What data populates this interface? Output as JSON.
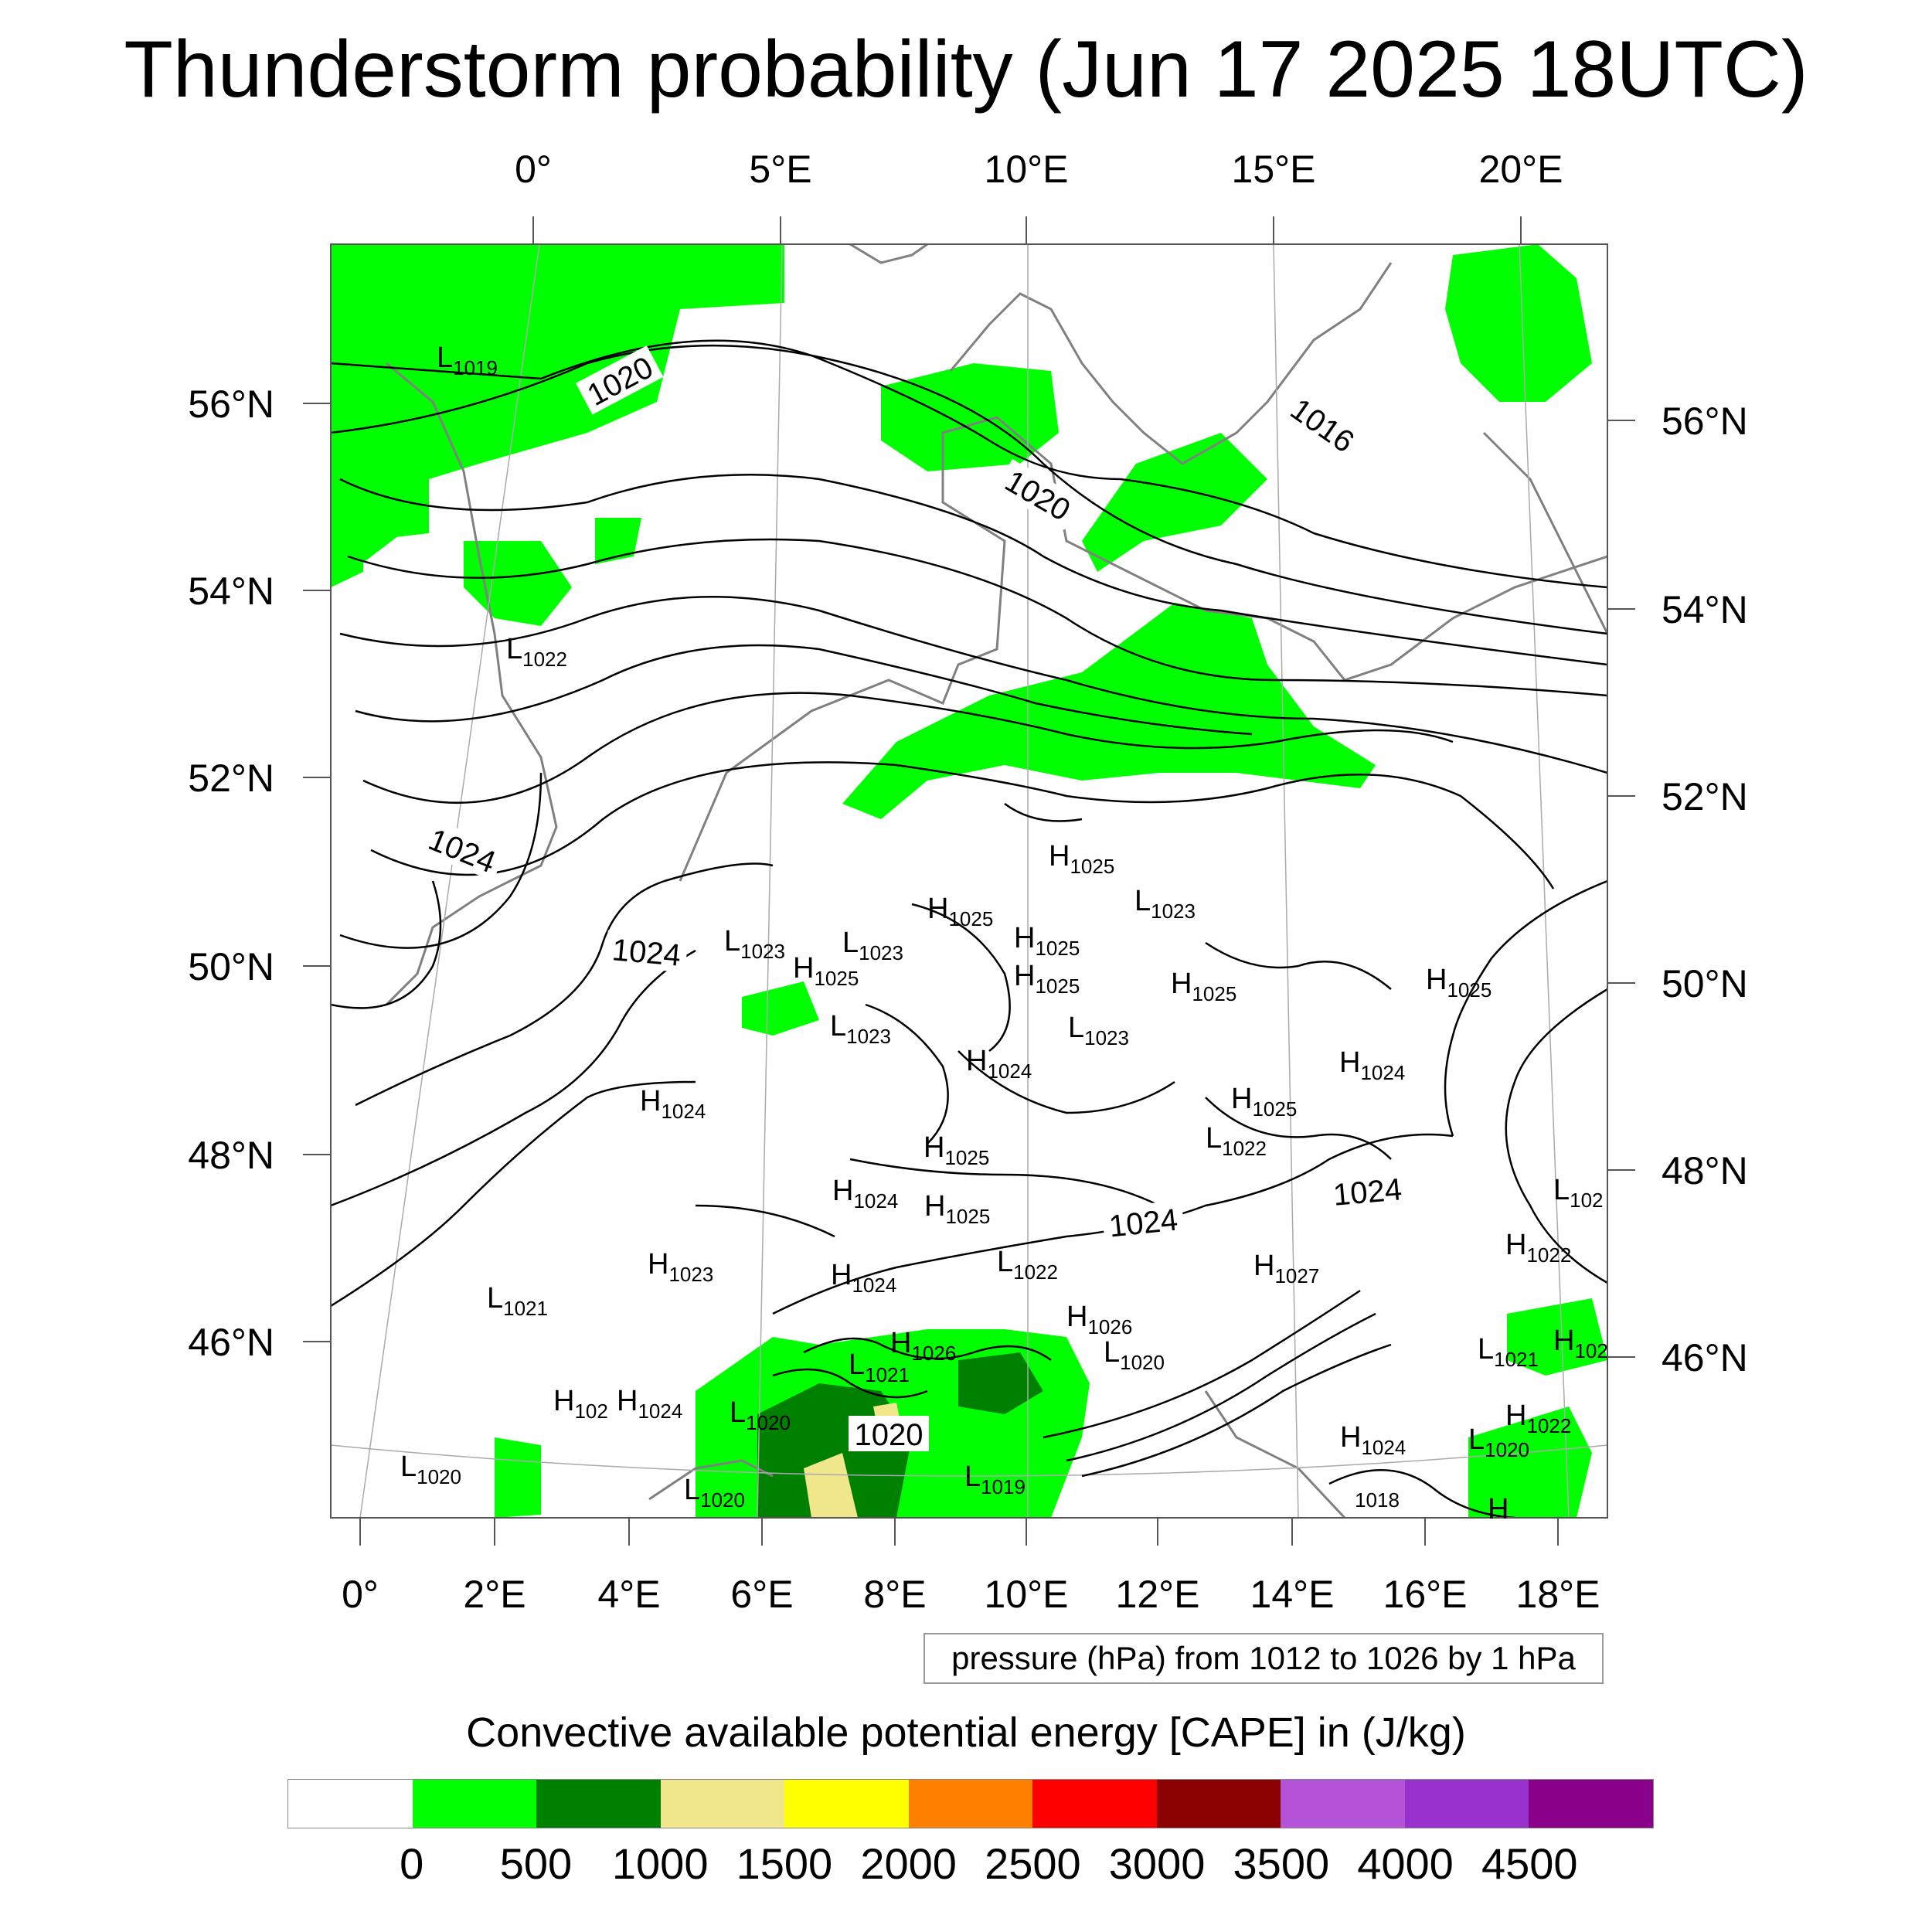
{
  "title": "Thunderstorm probability (Jun 17 2025 18UTC)",
  "top_lon_labels": [
    "0°",
    "5°E",
    "10°E",
    "15°E",
    "20°E"
  ],
  "bottom_lon_labels": [
    "0°",
    "2°E",
    "4°E",
    "6°E",
    "8°E",
    "10°E",
    "12°E",
    "14°E",
    "16°E",
    "18°E"
  ],
  "left_lat_labels": [
    "56°N",
    "54°N",
    "52°N",
    "50°N",
    "48°N",
    "46°N"
  ],
  "right_lat_labels": [
    "56°N",
    "54°N",
    "52°N",
    "50°N",
    "48°N",
    "46°N"
  ],
  "contour_labels": [
    "1020",
    "1016",
    "1020",
    "1024",
    "1024",
    "1024",
    "1024",
    "1020",
    "1018"
  ],
  "pressure_centers": [
    {
      "kind": "L",
      "value": "1019"
    },
    {
      "kind": "L",
      "value": "1022"
    },
    {
      "kind": "H",
      "value": "1025"
    },
    {
      "kind": "L",
      "value": "1023"
    },
    {
      "kind": "H",
      "value": "1025"
    },
    {
      "kind": "L",
      "value": "1023"
    },
    {
      "kind": "L",
      "value": "1023"
    },
    {
      "kind": "H",
      "value": "1025"
    },
    {
      "kind": "H",
      "value": "1025"
    },
    {
      "kind": "H",
      "value": "1025"
    },
    {
      "kind": "H",
      "value": "1025"
    },
    {
      "kind": "H",
      "value": "1025"
    },
    {
      "kind": "L",
      "value": "1023"
    },
    {
      "kind": "L",
      "value": "1023"
    },
    {
      "kind": "H",
      "value": "1024"
    },
    {
      "kind": "H",
      "value": "1024"
    },
    {
      "kind": "H",
      "value": "1024"
    },
    {
      "kind": "H",
      "value": "1025"
    },
    {
      "kind": "L",
      "value": "1022"
    },
    {
      "kind": "H",
      "value": "1025"
    },
    {
      "kind": "H",
      "value": "1024"
    },
    {
      "kind": "H",
      "value": "1025"
    },
    {
      "kind": "L",
      "value": "1022"
    },
    {
      "kind": "H",
      "value": "1023"
    },
    {
      "kind": "H",
      "value": "1024"
    },
    {
      "kind": "H",
      "value": "1027"
    },
    {
      "kind": "L",
      "value": "1021"
    },
    {
      "kind": "H",
      "value": "1026"
    },
    {
      "kind": "H",
      "value": "1026"
    },
    {
      "kind": "L",
      "value": "1020"
    },
    {
      "kind": "L",
      "value": "1021"
    },
    {
      "kind": "H",
      "value": "102"
    },
    {
      "kind": "H",
      "value": "1024"
    },
    {
      "kind": "L",
      "value": "1020"
    },
    {
      "kind": "L",
      "value": "1020"
    },
    {
      "kind": "L",
      "value": "1020"
    },
    {
      "kind": "L",
      "value": "1019"
    },
    {
      "kind": "H",
      "value": "1024"
    },
    {
      "kind": "L",
      "value": "102"
    },
    {
      "kind": "H",
      "value": "1022"
    },
    {
      "kind": "L",
      "value": "1021"
    },
    {
      "kind": "H",
      "value": "102"
    },
    {
      "kind": "H",
      "value": "1022"
    },
    {
      "kind": "L",
      "value": "1020"
    },
    {
      "kind": "H",
      "value": ""
    }
  ],
  "pressure_note": "pressure (hPa) from 1012 to 1026 by 1 hPa",
  "colorbar": {
    "title": "Convective available potential energy [CAPE] in (J/kg)",
    "colors": [
      "#ffffff",
      "#00ff00",
      "#008000",
      "#f0e68c",
      "#ffff00",
      "#ff8000",
      "#ff0000",
      "#8b0000",
      "#b452d8",
      "#9932cc",
      "#8b008b"
    ],
    "labels": [
      "0",
      "500",
      "1000",
      "1500",
      "2000",
      "2500",
      "3000",
      "3500",
      "4000",
      "4500"
    ]
  },
  "legend_colors": {
    "cape_0_500": "#00ff00",
    "cape_500_1000": "#008000",
    "cape_1000_1500": "#f0e68c",
    "contours": "#000000",
    "coastline": "#808080"
  }
}
